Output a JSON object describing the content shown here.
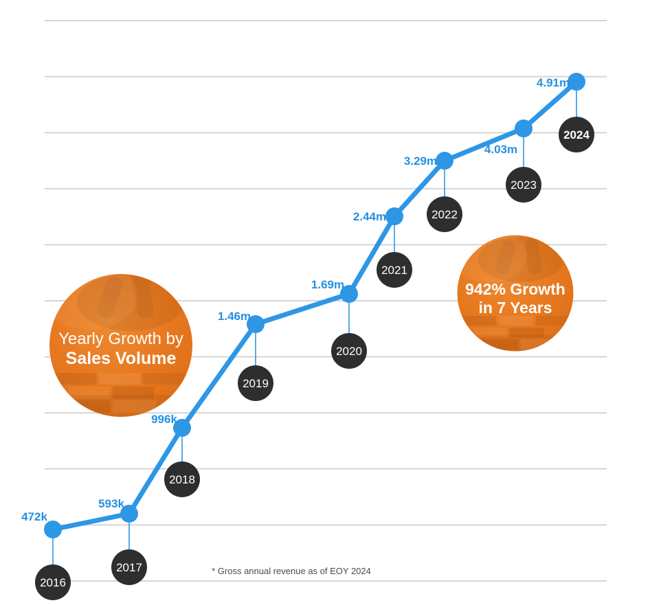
{
  "page": {
    "background": "#ffffff"
  },
  "badges": {
    "title": {
      "line1": "Yearly Growth by",
      "line2": "Sales Volume"
    },
    "growth": {
      "line1": "942% Growth",
      "line2": "in 7 Years"
    }
  },
  "footnote": "* Gross annual revenue as of EOY 2024",
  "colors": {
    "accent_blue": "#2D97E5",
    "label_blue": "#2590E0",
    "connector_blue": "#2D97E5",
    "dark_circle": "#2E2E2E",
    "year_text": "#ffffff",
    "badge_orange": "#E6761F",
    "gridline": "#D5D5D5",
    "footnote_text": "#4a4a4a"
  },
  "chart_data": {
    "type": "line",
    "title": "Yearly Growth by Sales Volume",
    "annotation": "942% Growth in 7 Years",
    "footnote": "* Gross annual revenue as of EOY 2024",
    "grid": true,
    "gridlines_horizontal": 11,
    "legend": false,
    "axes_labeled": false,
    "categories": [
      "2016",
      "2017",
      "2018",
      "2019",
      "2020",
      "2021",
      "2022",
      "2023",
      "2024"
    ],
    "values": [
      472000,
      593000,
      996000,
      1460000,
      1690000,
      2440000,
      3290000,
      4030000,
      4910000
    ],
    "points": [
      {
        "year": "2016",
        "label": "472k",
        "value": 472000,
        "emphasis": false
      },
      {
        "year": "2017",
        "label": "593k",
        "value": 593000,
        "emphasis": false
      },
      {
        "year": "2018",
        "label": "996k",
        "value": 996000,
        "emphasis": false
      },
      {
        "year": "2019",
        "label": "1.46m",
        "value": 1460000,
        "emphasis": false
      },
      {
        "year": "2020",
        "label": "1.69m",
        "value": 1690000,
        "emphasis": false
      },
      {
        "year": "2021",
        "label": "2.44m",
        "value": 2440000,
        "emphasis": false
      },
      {
        "year": "2022",
        "label": "3.29m",
        "value": 3290000,
        "emphasis": false
      },
      {
        "year": "2023",
        "label": "4.03m",
        "value": 4030000,
        "emphasis": false
      },
      {
        "year": "2024",
        "label": "4.91m",
        "value": 4910000,
        "emphasis": true
      }
    ]
  }
}
